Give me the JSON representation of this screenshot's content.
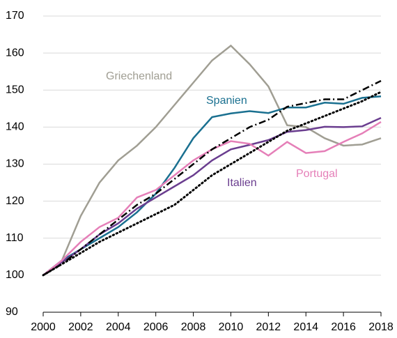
{
  "chart_data": {
    "type": "line",
    "x": [
      2000,
      2001,
      2002,
      2003,
      2004,
      2005,
      2006,
      2007,
      2008,
      2009,
      2010,
      2011,
      2012,
      2013,
      2014,
      2015,
      2016,
      2017,
      2018
    ],
    "series": [
      {
        "name": "Griechenland",
        "color": "#a09e93",
        "style": "solid",
        "values": [
          100,
          104,
          116,
          125,
          131,
          135,
          140,
          146,
          152,
          158,
          162,
          157,
          151,
          140.5,
          140,
          137,
          135,
          135.3,
          137
        ]
      },
      {
        "name": "Spanien",
        "color": "#1a7090",
        "style": "solid",
        "values": [
          100,
          104,
          107,
          110,
          113,
          117,
          122,
          129,
          137,
          142.7,
          143.7,
          144.3,
          143.8,
          145.3,
          145.3,
          146.6,
          146.3,
          147.9,
          148.3
        ]
      },
      {
        "name": "Italien",
        "color": "#6a3d8f",
        "style": "solid",
        "values": [
          100,
          103.5,
          107,
          111,
          114,
          118,
          121,
          124,
          127,
          131,
          134,
          135.2,
          136.5,
          138.7,
          139.2,
          140.1,
          140,
          140.2,
          142.5
        ]
      },
      {
        "name": "Portugal",
        "color": "#e57fb8",
        "style": "solid",
        "values": [
          100,
          104,
          109,
          113,
          115.5,
          121,
          123,
          127,
          131,
          134,
          136.2,
          135.5,
          132.3,
          136,
          133,
          133.5,
          136,
          138.3,
          141.4
        ]
      },
      {
        "color": "#000000",
        "style": "dashdot",
        "values": [
          100,
          103,
          107,
          111,
          115,
          119,
          122,
          126,
          130,
          134,
          137,
          140,
          142,
          145.5,
          146.5,
          147.5,
          147.5,
          150,
          152.5
        ]
      },
      {
        "color": "#000000",
        "style": "dotted",
        "values": [
          100,
          103,
          106,
          109,
          111.5,
          114,
          116.5,
          119,
          123,
          127,
          130,
          133,
          136,
          139,
          141,
          143,
          145,
          147,
          149.5
        ]
      }
    ],
    "xlim": [
      2000,
      2018
    ],
    "xticks": [
      2000,
      2002,
      2004,
      2006,
      2008,
      2010,
      2012,
      2014,
      2016,
      2018
    ],
    "ylim": [
      90,
      170
    ],
    "yticks": [
      90,
      100,
      110,
      120,
      130,
      140,
      150,
      160,
      170
    ],
    "grid": true
  }
}
